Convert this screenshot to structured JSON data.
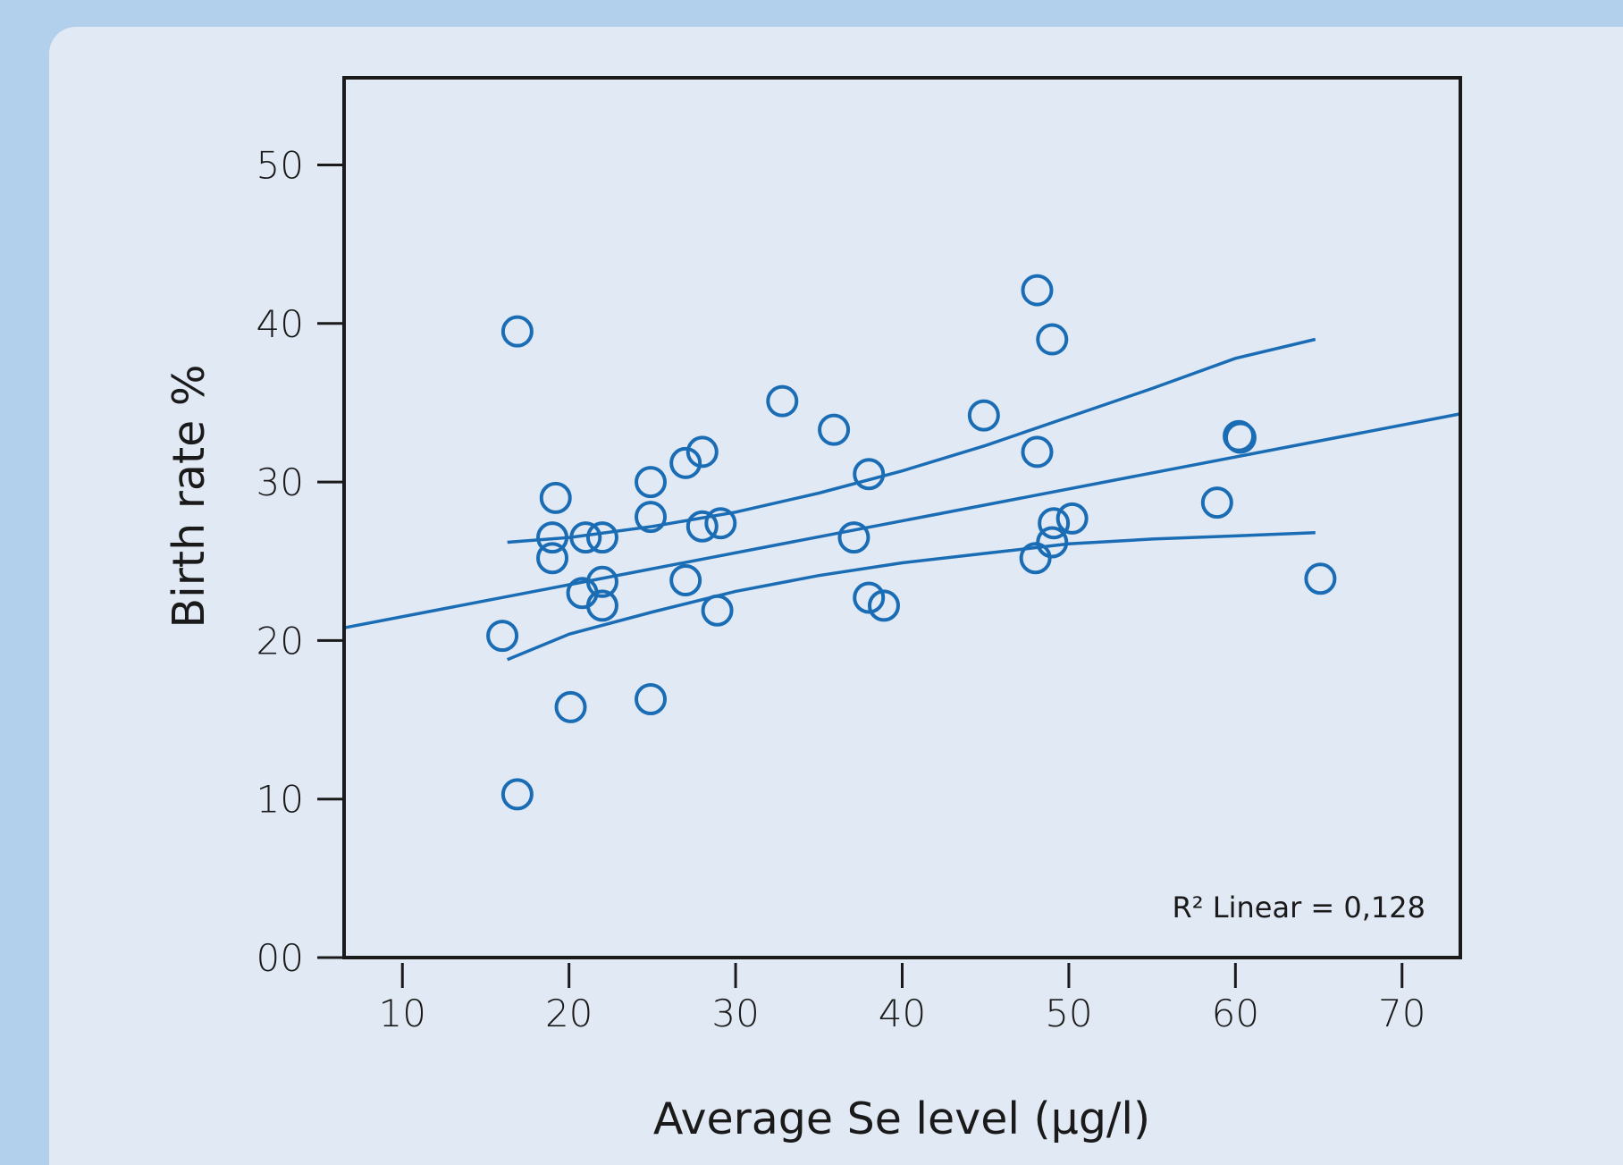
{
  "chart_data": {
    "type": "scatter",
    "title": "",
    "xlabel": "Average Se level (µg/l)",
    "ylabel": "Birth rate %",
    "xlim": [
      6.5,
      73.5
    ],
    "ylim": [
      0,
      55.5
    ],
    "x_ticks": [
      10,
      20,
      30,
      40,
      50,
      60,
      70
    ],
    "x_tick_labels": [
      "10",
      "20",
      "30",
      "40",
      "50",
      "60",
      "70"
    ],
    "y_ticks": [
      0,
      10,
      20,
      30,
      40,
      50
    ],
    "y_tick_labels": [
      "00",
      "10",
      "20",
      "30",
      "40",
      "50"
    ],
    "grid": false,
    "marker": "open-circle",
    "color": "#1a6db5",
    "points": [
      {
        "x": 16.9,
        "y": 39.5
      },
      {
        "x": 48.1,
        "y": 42.1
      },
      {
        "x": 49.0,
        "y": 39.0
      },
      {
        "x": 32.8,
        "y": 35.1
      },
      {
        "x": 35.9,
        "y": 33.3
      },
      {
        "x": 44.9,
        "y": 34.2
      },
      {
        "x": 28.0,
        "y": 31.9
      },
      {
        "x": 27.0,
        "y": 31.2
      },
      {
        "x": 24.9,
        "y": 30.0
      },
      {
        "x": 38.0,
        "y": 30.5
      },
      {
        "x": 48.1,
        "y": 31.9
      },
      {
        "x": 60.2,
        "y": 32.9
      },
      {
        "x": 60.3,
        "y": 32.8
      },
      {
        "x": 19.2,
        "y": 29.0
      },
      {
        "x": 58.9,
        "y": 28.7
      },
      {
        "x": 24.9,
        "y": 27.8
      },
      {
        "x": 28.0,
        "y": 27.2
      },
      {
        "x": 29.1,
        "y": 27.4
      },
      {
        "x": 49.1,
        "y": 27.4
      },
      {
        "x": 50.2,
        "y": 27.7
      },
      {
        "x": 19.0,
        "y": 26.5
      },
      {
        "x": 21.0,
        "y": 26.5
      },
      {
        "x": 22.0,
        "y": 26.5
      },
      {
        "x": 37.1,
        "y": 26.5
      },
      {
        "x": 49.0,
        "y": 26.2
      },
      {
        "x": 19.0,
        "y": 25.2
      },
      {
        "x": 48.0,
        "y": 25.2
      },
      {
        "x": 27.0,
        "y": 23.8
      },
      {
        "x": 22.0,
        "y": 23.7
      },
      {
        "x": 20.8,
        "y": 23.0
      },
      {
        "x": 65.1,
        "y": 23.9
      },
      {
        "x": 38.0,
        "y": 22.7
      },
      {
        "x": 38.9,
        "y": 22.2
      },
      {
        "x": 22.0,
        "y": 22.2
      },
      {
        "x": 28.9,
        "y": 21.9
      },
      {
        "x": 16.0,
        "y": 20.3
      },
      {
        "x": 24.9,
        "y": 16.3
      },
      {
        "x": 20.1,
        "y": 15.8
      },
      {
        "x": 16.9,
        "y": 10.3
      }
    ],
    "fit_line": {
      "type": "linear",
      "color": "#1a6db5",
      "points": [
        [
          6.5,
          20.8
        ],
        [
          73.5,
          34.3
        ]
      ]
    },
    "confidence_band": {
      "color": "#1a6db5",
      "upper": [
        [
          16.3,
          26.2
        ],
        [
          20,
          26.5
        ],
        [
          25,
          27.2
        ],
        [
          30,
          28.1
        ],
        [
          35,
          29.3
        ],
        [
          40,
          30.7
        ],
        [
          45,
          32.3
        ],
        [
          50,
          34.1
        ],
        [
          55,
          35.9
        ],
        [
          60,
          37.8
        ],
        [
          64.8,
          39.0
        ]
      ],
      "lower": [
        [
          16.3,
          18.8
        ],
        [
          20,
          20.4
        ],
        [
          25,
          21.8
        ],
        [
          30,
          23.1
        ],
        [
          35,
          24.1
        ],
        [
          40,
          24.9
        ],
        [
          45,
          25.5
        ],
        [
          50,
          26.1
        ],
        [
          55,
          26.4
        ],
        [
          60,
          26.6
        ],
        [
          64.8,
          26.8
        ]
      ]
    },
    "annotations": [
      {
        "text": "R² Linear = 0,128",
        "position": "bottom-right"
      }
    ]
  }
}
